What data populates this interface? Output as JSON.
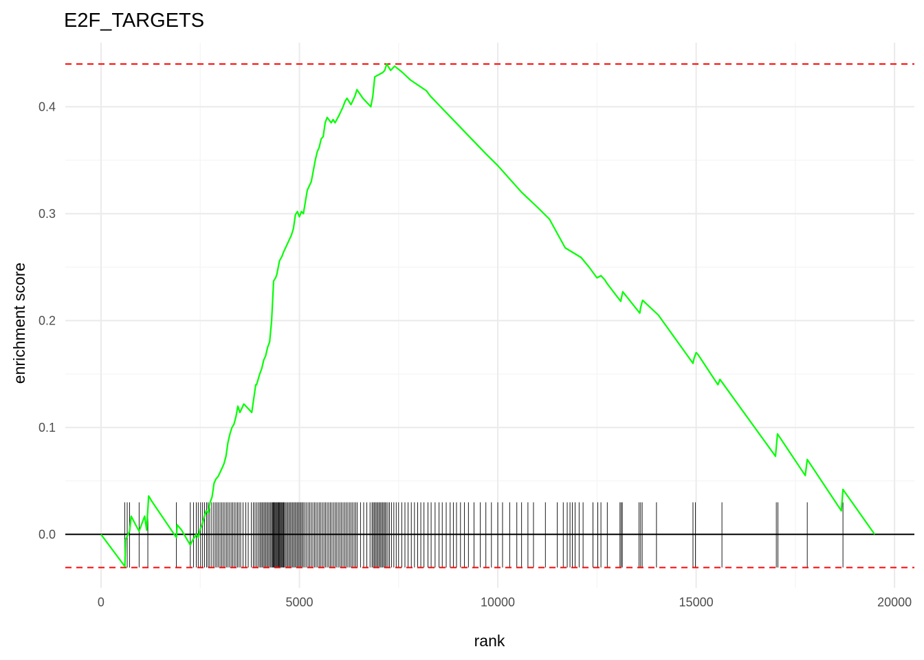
{
  "chart_data": {
    "type": "line",
    "title": "E2F_TARGETS",
    "xlabel": "rank",
    "ylabel": "enrichment score",
    "xlim": [
      -900,
      20500
    ],
    "ylim": [
      -0.05,
      0.46
    ],
    "x_ticks": [
      0,
      5000,
      10000,
      15000,
      20000
    ],
    "x_tick_labels": [
      "0",
      "5000",
      "10000",
      "15000",
      "20000"
    ],
    "y_ticks": [
      0.0,
      0.1,
      0.2,
      0.3,
      0.4
    ],
    "y_tick_labels": [
      "0.0",
      "0.1",
      "0.2",
      "0.3",
      "0.4"
    ],
    "grid": true,
    "colors": {
      "curve": "#00ff00",
      "reference_lines": "#ff0000",
      "hits": "#000000",
      "zero_line": "#000000"
    },
    "reference_lines": [
      0.44,
      -0.031
    ],
    "zero_line": 0,
    "series": [
      {
        "x": [
          0,
          600,
          620,
          720,
          760,
          900,
          960,
          1100,
          1150,
          1200,
          1280,
          1900,
          1920,
          2030,
          2250,
          2300,
          2400,
          2450,
          2500,
          2550,
          2600,
          2650,
          2700,
          2750,
          2800,
          2850,
          2900,
          2950,
          3000,
          3050,
          3100,
          3150,
          3200,
          3250,
          3300,
          3350,
          3400,
          3450,
          3500,
          3600,
          3650,
          3700,
          3800,
          3900,
          3920,
          4000,
          4050,
          4100,
          4150,
          4200,
          4250,
          4300,
          4350,
          4400,
          4430,
          4500,
          4560,
          4600,
          4700,
          4800,
          4850,
          4900,
          4950,
          5000,
          5050,
          5100,
          5200,
          5300,
          5350,
          5400,
          5450,
          5500,
          5550,
          5600,
          5650,
          5700,
          5800,
          5850,
          5900,
          6000,
          6100,
          6150,
          6200,
          6300,
          6400,
          6450,
          6600,
          6800,
          6850,
          6900,
          7000,
          7100,
          7150,
          7200,
          7300,
          7400,
          7600,
          7800,
          8000,
          8200,
          8300,
          9000,
          9700,
          10000,
          10600,
          11000,
          11300,
          11700,
          12100,
          12300,
          12500,
          12600,
          12700,
          12750,
          13100,
          13150,
          13580,
          13600,
          13650,
          14050,
          14920,
          14950,
          15000,
          15050,
          15550,
          15600,
          17000,
          17050,
          17750,
          17800,
          18660,
          18700,
          19500
        ],
        "y": [
          0.0,
          -0.03,
          -0.005,
          0.003,
          0.017,
          0.007,
          0.003,
          0.017,
          0.004,
          0.036,
          0.031,
          -0.003,
          0.009,
          0.004,
          -0.01,
          -0.006,
          0.0,
          -0.003,
          0.005,
          0.009,
          0.016,
          0.022,
          0.02,
          0.03,
          0.035,
          0.048,
          0.052,
          0.054,
          0.058,
          0.062,
          0.066,
          0.073,
          0.086,
          0.094,
          0.1,
          0.103,
          0.11,
          0.12,
          0.114,
          0.122,
          0.12,
          0.118,
          0.114,
          0.14,
          0.14,
          0.15,
          0.155,
          0.163,
          0.167,
          0.175,
          0.18,
          0.2,
          0.237,
          0.24,
          0.243,
          0.256,
          0.26,
          0.264,
          0.272,
          0.28,
          0.286,
          0.299,
          0.302,
          0.297,
          0.302,
          0.3,
          0.322,
          0.33,
          0.34,
          0.35,
          0.358,
          0.362,
          0.37,
          0.372,
          0.385,
          0.39,
          0.385,
          0.388,
          0.385,
          0.392,
          0.4,
          0.405,
          0.408,
          0.402,
          0.41,
          0.416,
          0.408,
          0.4,
          0.41,
          0.428,
          0.43,
          0.432,
          0.434,
          0.44,
          0.434,
          0.438,
          0.432,
          0.425,
          0.42,
          0.415,
          0.41,
          0.383,
          0.356,
          0.345,
          0.32,
          0.306,
          0.295,
          0.268,
          0.259,
          0.25,
          0.24,
          0.242,
          0.238,
          0.235,
          0.218,
          0.227,
          0.207,
          0.212,
          0.219,
          0.205,
          0.16,
          0.165,
          0.17,
          0.168,
          0.14,
          0.145,
          0.073,
          0.094,
          0.055,
          0.07,
          0.022,
          0.042,
          0.0
        ]
      }
    ],
    "hit_height": 0.03,
    "hits": [
      600,
      660,
      720,
      960,
      1180,
      1900,
      2250,
      2330,
      2400,
      2450,
      2510,
      2560,
      2610,
      2660,
      2700,
      2740,
      2790,
      2840,
      2880,
      2920,
      2960,
      3000,
      3040,
      3080,
      3120,
      3160,
      3200,
      3240,
      3280,
      3320,
      3360,
      3400,
      3440,
      3480,
      3520,
      3580,
      3650,
      3710,
      3790,
      3840,
      3880,
      3920,
      3960,
      4000,
      4030,
      4060,
      4090,
      4120,
      4150,
      4180,
      4210,
      4240,
      4270,
      4300,
      4320,
      4340,
      4360,
      4380,
      4400,
      4420,
      4440,
      4460,
      4480,
      4500,
      4520,
      4540,
      4560,
      4580,
      4600,
      4620,
      4650,
      4680,
      4710,
      4740,
      4770,
      4800,
      4830,
      4860,
      4890,
      4920,
      4950,
      4980,
      5010,
      5040,
      5070,
      5100,
      5140,
      5180,
      5220,
      5260,
      5300,
      5340,
      5380,
      5420,
      5460,
      5500,
      5540,
      5580,
      5620,
      5660,
      5700,
      5740,
      5780,
      5820,
      5860,
      5900,
      5940,
      5980,
      6020,
      6060,
      6100,
      6140,
      6180,
      6220,
      6260,
      6300,
      6340,
      6380,
      6420,
      6460,
      6540,
      6620,
      6700,
      6780,
      6830,
      6860,
      6890,
      6920,
      6950,
      6980,
      7010,
      7040,
      7070,
      7100,
      7130,
      7160,
      7190,
      7230,
      7270,
      7320,
      7380,
      7440,
      7500,
      7580,
      7660,
      7740,
      7820,
      7900,
      7980,
      8060,
      8140,
      8240,
      8320,
      8420,
      8520,
      8600,
      8700,
      8800,
      8880,
      8960,
      9060,
      9160,
      9260,
      9400,
      9560,
      9700,
      9840,
      10000,
      10120,
      10300,
      10480,
      10600,
      10760,
      10900,
      11200,
      11500,
      11650,
      11750,
      11820,
      11880,
      11950,
      12050,
      12150,
      12400,
      12520,
      12600,
      12760,
      13080,
      13110,
      13140,
      13560,
      13600,
      13640,
      14000,
      14920,
      14980,
      15650,
      17020,
      17060,
      17800,
      18700
    ]
  }
}
